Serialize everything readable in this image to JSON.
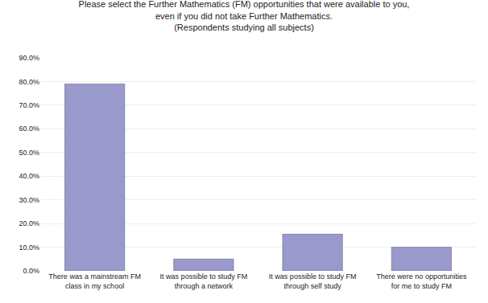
{
  "chart_data": {
    "type": "bar",
    "title": "Please select the Further Mathematics (FM) opportunities that were available to you,\neven if you did not take Further Mathematics.\n(Respondents studying all subjects)",
    "categories": [
      "There was a mainstream FM\nclass in my school",
      "It was possible to study FM\nthrough a network",
      "It was possible to study FM\nthrough self study",
      "There were no opportunities\nfor me to study FM"
    ],
    "values": [
      0.79,
      0.05,
      0.155,
      0.1
    ],
    "color": "#9999cc",
    "ylim": [
      0,
      0.9
    ],
    "yticks": [
      {
        "value": 0.0,
        "label": "0.0%"
      },
      {
        "value": 0.1,
        "label": "10.0%"
      },
      {
        "value": 0.2,
        "label": "20.0%"
      },
      {
        "value": 0.3,
        "label": "30.0%"
      },
      {
        "value": 0.4,
        "label": "40.0%"
      },
      {
        "value": 0.5,
        "label": "50.0%"
      },
      {
        "value": 0.6,
        "label": "60.0%"
      },
      {
        "value": 0.7,
        "label": "70.0%"
      },
      {
        "value": 0.8,
        "label": "80.0%"
      },
      {
        "value": 0.9,
        "label": "90.0%"
      }
    ],
    "grid": true
  }
}
